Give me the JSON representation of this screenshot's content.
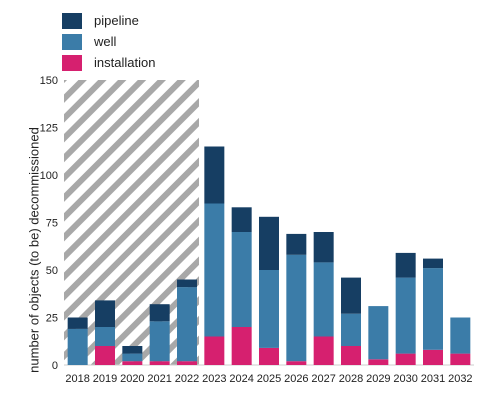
{
  "chart_data": {
    "type": "bar",
    "stacked": true,
    "categories": [
      "2018",
      "2019",
      "2020",
      "2021",
      "2022",
      "2023",
      "2024",
      "2025",
      "2026",
      "2027",
      "2028",
      "2029",
      "2030",
      "2031",
      "2032"
    ],
    "series": [
      {
        "name": "installation",
        "color": "#d6206f",
        "values": [
          0,
          10,
          2,
          2,
          2,
          15,
          20,
          9,
          2,
          15,
          10,
          3,
          6,
          8,
          6
        ]
      },
      {
        "name": "well",
        "color": "#3b7ca8",
        "values": [
          19,
          10,
          4,
          21,
          39,
          70,
          50,
          41,
          56,
          39,
          17,
          28,
          40,
          43,
          19
        ]
      },
      {
        "name": "pipeline",
        "color": "#163e63",
        "values": [
          6,
          14,
          4,
          9,
          4,
          30,
          13,
          28,
          11,
          16,
          19,
          0,
          13,
          5,
          0
        ]
      }
    ],
    "legend_order": [
      "pipeline",
      "well",
      "installation"
    ],
    "ylabel": "number of objects (to be) decommissioned",
    "xlabel": "",
    "ylim": [
      0,
      150
    ],
    "yticks": [
      0,
      25,
      50,
      75,
      100,
      125,
      150
    ],
    "hatched_range": [
      "2018",
      "2022"
    ],
    "legend_position": "top-left"
  }
}
